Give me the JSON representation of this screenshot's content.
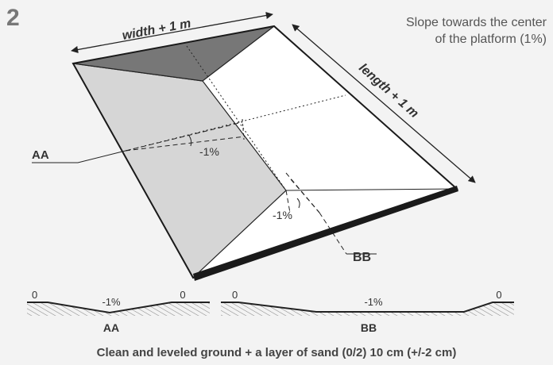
{
  "figure": {
    "step_number": "2",
    "slope_note_line1": "Slope towards the center",
    "slope_note_line2": "of the platform (1%)",
    "dimension_width": "width + 1 m",
    "dimension_length": "length + 1 m",
    "section_label_aa": "AA",
    "section_label_bb": "BB",
    "slope_left": "-1%",
    "slope_right": "-1%"
  },
  "profiles": {
    "aa": {
      "edge_left": "0",
      "center": "-1%",
      "edge_right": "0",
      "label": "AA"
    },
    "bb": {
      "edge_left": "0",
      "center": "-1%",
      "edge_right": "0",
      "label": "BB"
    }
  },
  "footer": {
    "caption": "Clean and leveled ground + a layer of sand (0/2) 10 cm (+/-2 cm)"
  },
  "colors": {
    "outline": "#1a1a1a",
    "dark_face": "#777777",
    "light_face": "#d6d6d6",
    "white_face": "#ffffff",
    "text": "#333333"
  }
}
